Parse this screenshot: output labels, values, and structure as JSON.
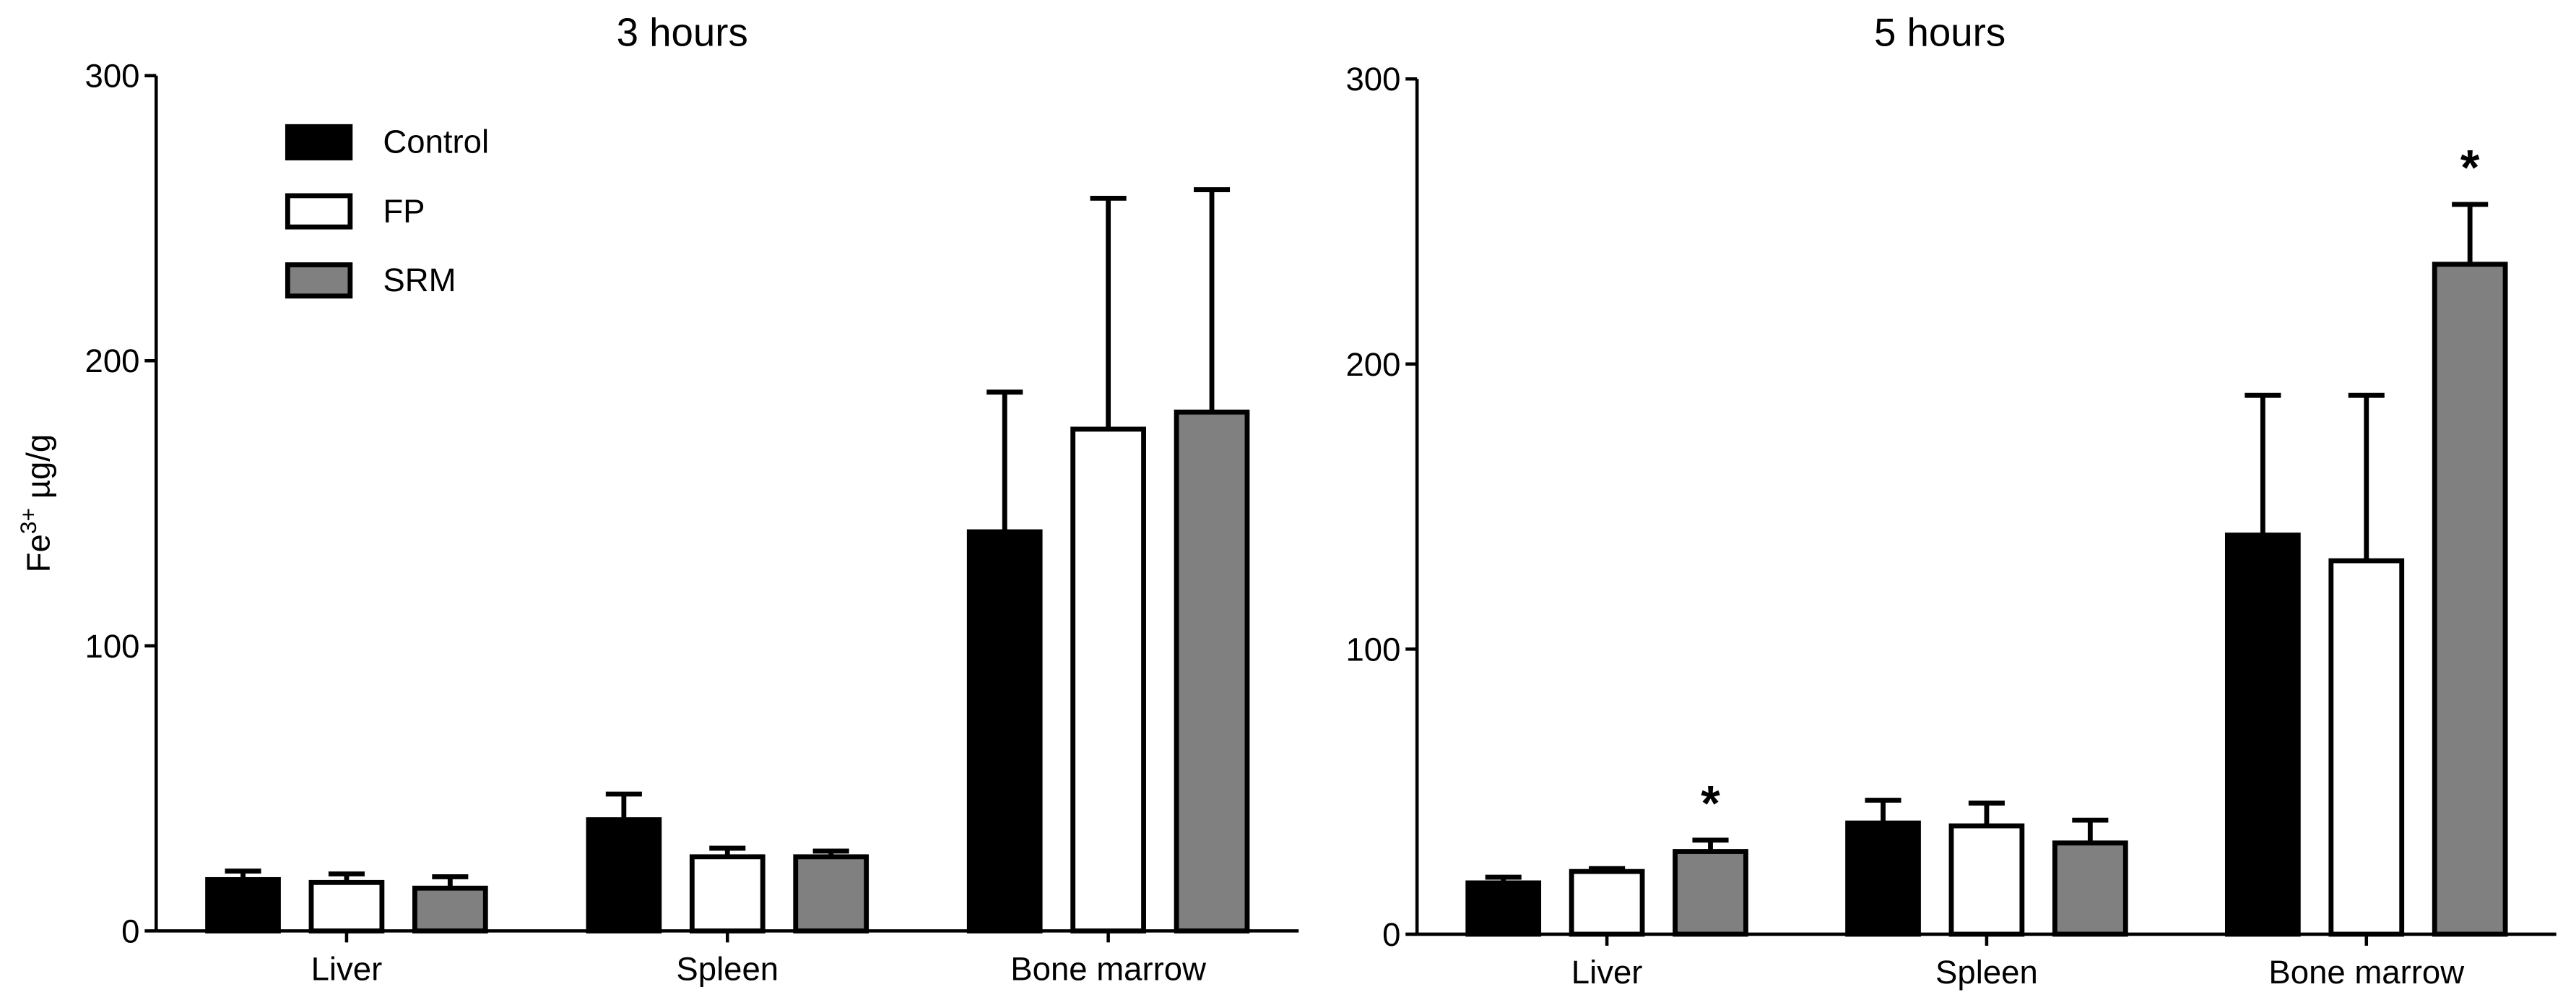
{
  "chart_data": [
    {
      "type": "bar",
      "title": "3 hours",
      "ylabel": {
        "base": "Fe",
        "sup": "3+",
        "unit": " µg/g"
      },
      "categories": [
        "Liver",
        "Spleen",
        "Bone marrow"
      ],
      "series": [
        {
          "name": "Control",
          "color": "#000000",
          "values": [
            18,
            39,
            140
          ],
          "errors": [
            3,
            9,
            49
          ]
        },
        {
          "name": "FP",
          "color": "#ffffff",
          "values": [
            17,
            26,
            176
          ],
          "errors": [
            3,
            3,
            81
          ]
        },
        {
          "name": "SRM",
          "color": "#808080",
          "values": [
            15,
            26,
            182
          ],
          "errors": [
            4,
            2,
            78
          ]
        }
      ],
      "ylim": [
        0,
        300
      ],
      "yticks": [
        0,
        100,
        200,
        300
      ],
      "legend": "upper left"
    },
    {
      "type": "bar",
      "title": "5 hours",
      "categories": [
        "Liver",
        "Spleen",
        "Bone marrow"
      ],
      "series": [
        {
          "name": "Control",
          "color": "#000000",
          "values": [
            18,
            39,
            140
          ],
          "errors": [
            2,
            8,
            49
          ]
        },
        {
          "name": "FP",
          "color": "#ffffff",
          "values": [
            22,
            38,
            131
          ],
          "errors": [
            1,
            8,
            58
          ]
        },
        {
          "name": "SRM",
          "color": "#808080",
          "values": [
            29,
            32,
            235
          ],
          "errors": [
            4,
            8,
            21
          ]
        }
      ],
      "ylim": [
        0,
        300
      ],
      "yticks": [
        0,
        100,
        200,
        300
      ],
      "annotations": [
        {
          "text": "*",
          "category": "Liver",
          "series": "SRM"
        },
        {
          "text": "*",
          "category": "Bone marrow",
          "series": "SRM"
        }
      ]
    }
  ]
}
